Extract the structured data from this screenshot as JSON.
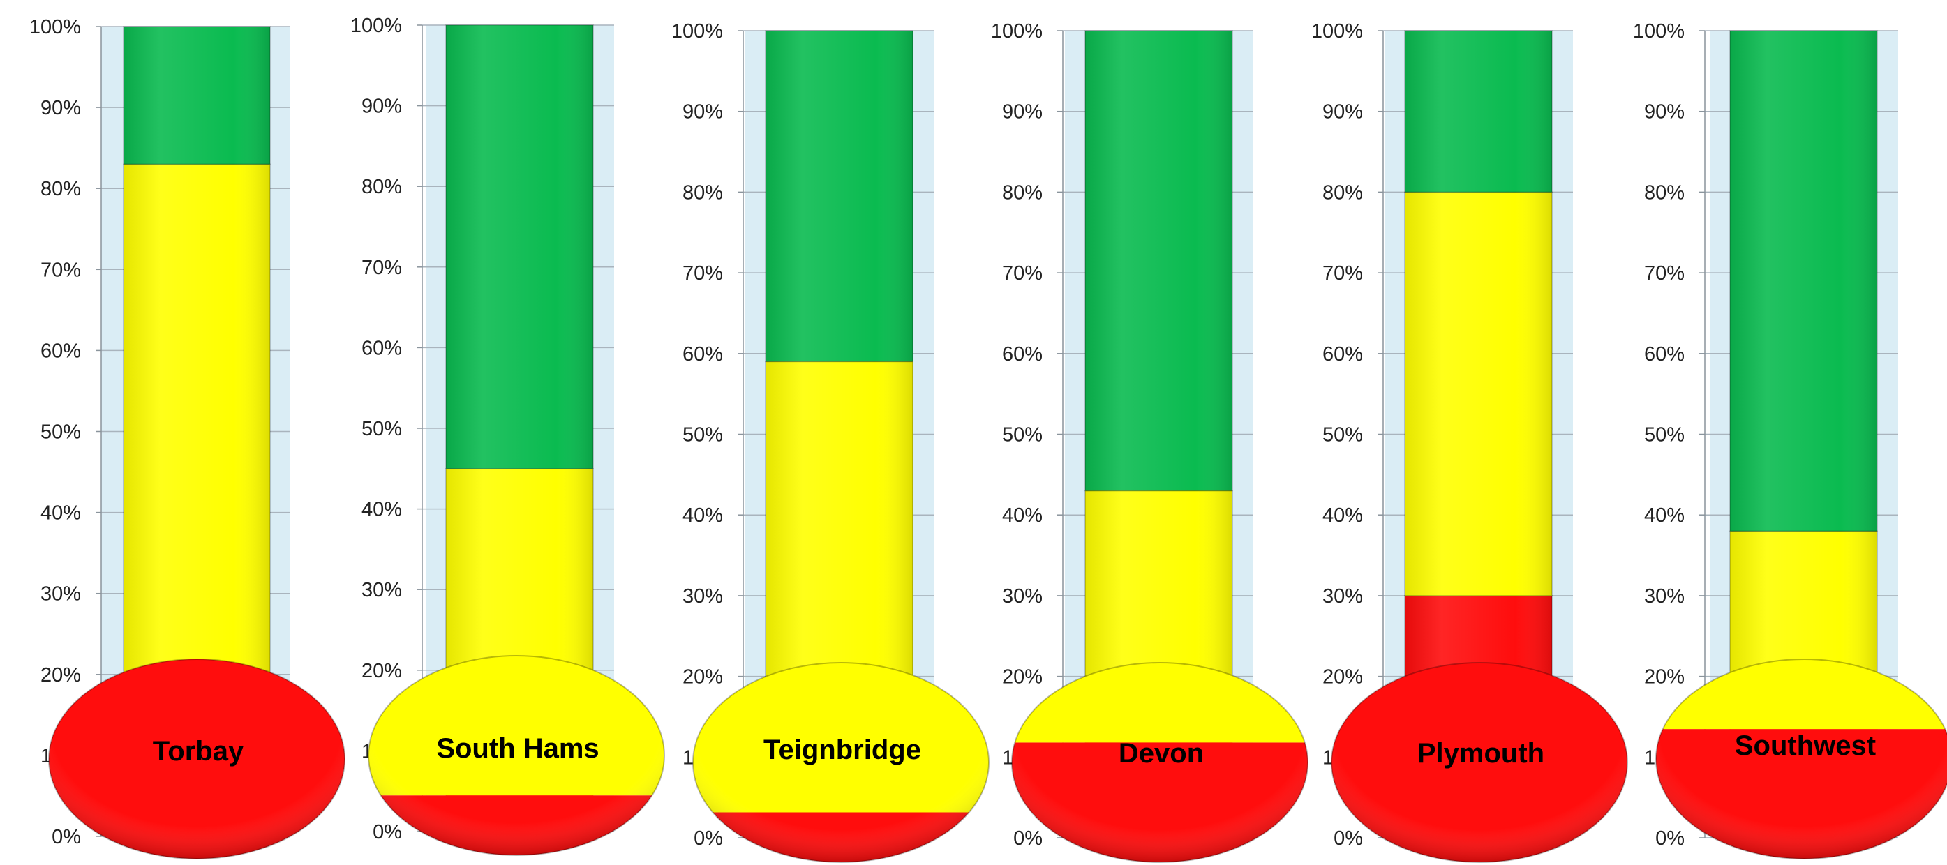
{
  "chart_data": {
    "type": "bar",
    "stacked": true,
    "style": "thermometer",
    "categories": [
      "Torbay",
      "South Hams",
      "Teignbridge",
      "Devon",
      "Plymouth",
      "Southwest"
    ],
    "series": [
      {
        "color": "#ff0d0d",
        "values": [
          20,
          6,
          5,
          12,
          30,
          13
        ]
      },
      {
        "color": "#ffff00",
        "values": [
          63,
          39,
          54,
          31,
          50,
          25
        ]
      },
      {
        "color": "#0abb50",
        "values": [
          17,
          55,
          41,
          57,
          20,
          62
        ]
      }
    ],
    "ylim": [
      0,
      100
    ],
    "yticks": [
      "0%",
      "10%",
      "20%",
      "30%",
      "40%",
      "50%",
      "60%",
      "70%",
      "80%",
      "90%",
      "100%"
    ],
    "grid": true,
    "legend": "none"
  }
}
